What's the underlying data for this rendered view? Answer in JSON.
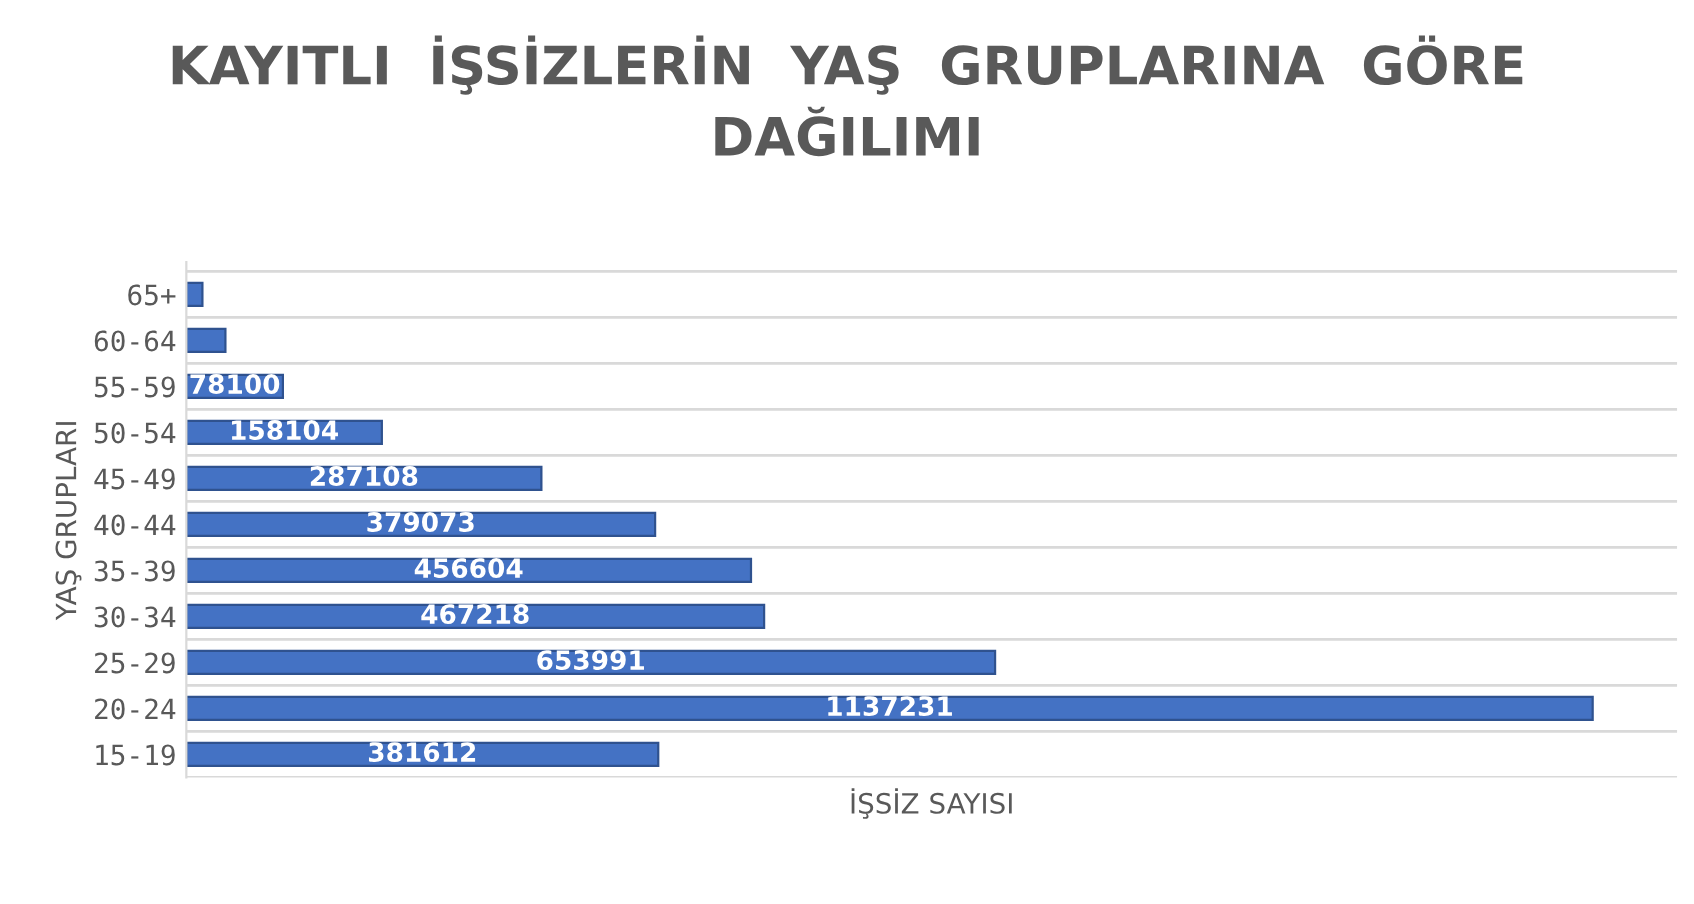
{
  "chart_data": {
    "type": "bar",
    "orientation": "horizontal",
    "title": "KAYITLI  İŞSİZLERİN  YAŞ  GRUPLARINA  GÖRE\nDAĞILIMI",
    "xlabel": "İŞSİZ SAYISI",
    "ylabel": "YAŞ GRUPLARI",
    "categories": [
      "65+",
      "60-64",
      "55-59",
      "50-54",
      "45-49",
      "40-44",
      "35-39",
      "30-34",
      "25-29",
      "20-24",
      "15-19"
    ],
    "values": [
      13000,
      31600,
      78100,
      158104,
      287108,
      379073,
      456604,
      467218,
      653991,
      1137231,
      381612
    ],
    "value_labels": [
      null,
      null,
      "78100",
      "158104",
      "287108",
      "379073",
      "456604",
      "467218",
      "653991",
      "1137231",
      "381612"
    ],
    "color": "#4472c4",
    "grid": "y",
    "legend": false
  }
}
